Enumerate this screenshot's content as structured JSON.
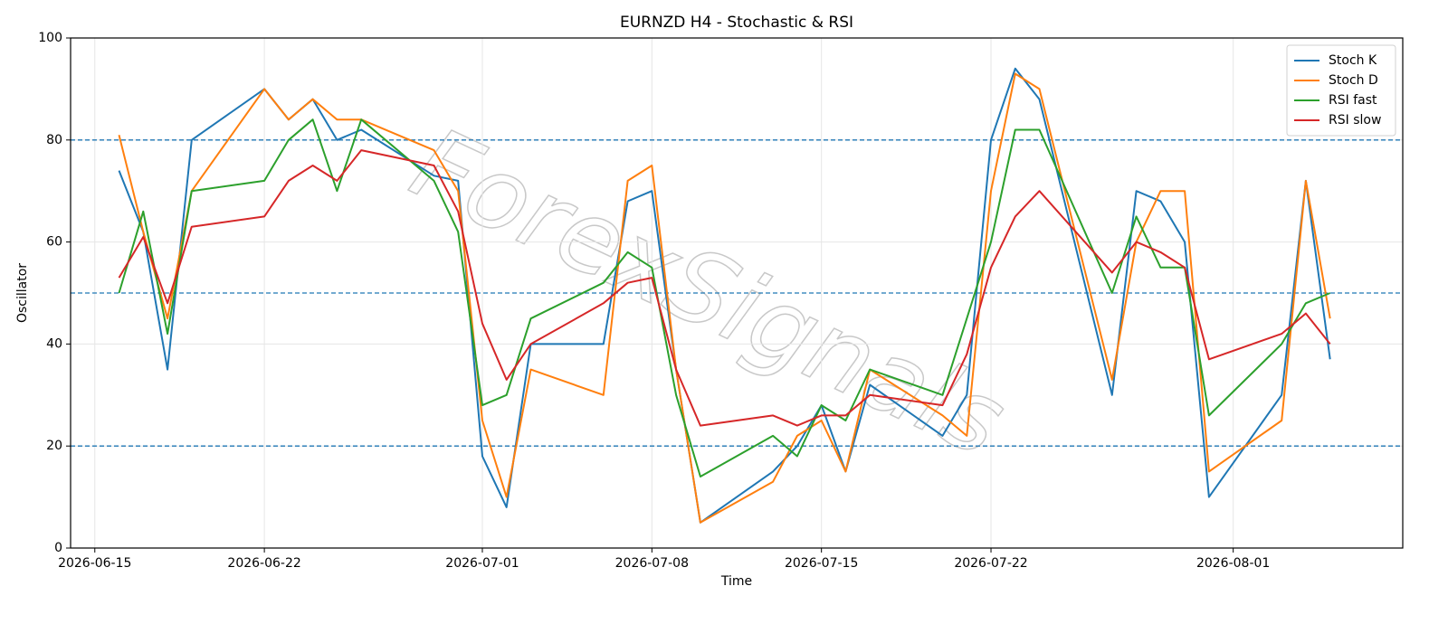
{
  "chart_data": {
    "type": "line",
    "title": "EURNZD H4 - Stochastic & RSI",
    "xlabel": "Time",
    "ylabel": "Oscillator",
    "watermark": "ForexSignals",
    "x": [
      "2026-06-16",
      "2026-06-17",
      "2026-06-18",
      "2026-06-19",
      "2026-06-22",
      "2026-06-23",
      "2026-06-24",
      "2026-06-25",
      "2026-06-26",
      "2026-06-29",
      "2026-06-30",
      "2026-07-01",
      "2026-07-02",
      "2026-07-03",
      "2026-07-06",
      "2026-07-07",
      "2026-07-08",
      "2026-07-09",
      "2026-07-10",
      "2026-07-13",
      "2026-07-14",
      "2026-07-15",
      "2026-07-16",
      "2026-07-17",
      "2026-07-20",
      "2026-07-21",
      "2026-07-22",
      "2026-07-23",
      "2026-07-24",
      "2026-07-27",
      "2026-07-28",
      "2026-07-29",
      "2026-07-30",
      "2026-07-31",
      "2026-08-03",
      "2026-08-04",
      "2026-08-05"
    ],
    "series": [
      {
        "name": "Stoch K",
        "color": "#1f77b4",
        "values": [
          74,
          62,
          35,
          80,
          90,
          84,
          88,
          80,
          82,
          73,
          72,
          18,
          8,
          40,
          40,
          68,
          70,
          35,
          5,
          15,
          20,
          28,
          15,
          32,
          22,
          30,
          80,
          94,
          88,
          30,
          70,
          68,
          60,
          10,
          30,
          72,
          37
        ]
      },
      {
        "name": "Stoch D",
        "color": "#ff7f0e",
        "values": [
          81,
          62,
          45,
          70,
          90,
          84,
          88,
          84,
          84,
          78,
          70,
          25,
          10,
          35,
          30,
          72,
          75,
          35,
          5,
          13,
          22,
          25,
          15,
          35,
          26,
          22,
          70,
          93,
          90,
          33,
          60,
          70,
          70,
          15,
          25,
          72,
          45
        ]
      },
      {
        "name": "RSI fast",
        "color": "#2ca02c",
        "values": [
          50,
          66,
          42,
          70,
          72,
          80,
          84,
          70,
          84,
          72,
          62,
          28,
          30,
          45,
          52,
          58,
          55,
          30,
          14,
          22,
          18,
          28,
          25,
          35,
          30,
          45,
          60,
          82,
          82,
          50,
          65,
          55,
          55,
          26,
          40,
          48,
          50
        ]
      },
      {
        "name": "RSI slow",
        "color": "#d62728",
        "values": [
          53,
          61,
          48,
          63,
          65,
          72,
          75,
          72,
          78,
          75,
          66,
          44,
          33,
          40,
          48,
          52,
          53,
          35,
          24,
          26,
          24,
          26,
          26,
          30,
          28,
          38,
          55,
          65,
          70,
          54,
          60,
          58,
          55,
          37,
          42,
          46,
          40
        ]
      }
    ],
    "xlim": [
      "2026-06-14",
      "2026-08-08"
    ],
    "xticks": [
      "2026-06-15",
      "2026-06-22",
      "2026-07-01",
      "2026-07-08",
      "2026-07-15",
      "2026-07-22",
      "2026-08-01"
    ],
    "ylim": [
      0,
      100
    ],
    "yticks": [
      0,
      20,
      40,
      60,
      80,
      100
    ],
    "hlines": [
      20,
      50,
      80
    ],
    "hline_color": "#1f77b4",
    "grid": true,
    "legend": "upper right"
  }
}
